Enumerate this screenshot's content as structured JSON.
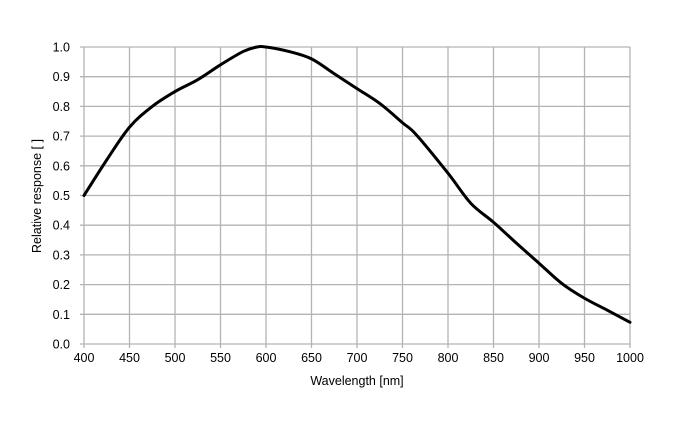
{
  "chart_data": {
    "type": "line",
    "title": "",
    "xlabel": "Wavelength [nm]",
    "ylabel": "Relative response [ ]",
    "xlim": [
      400,
      1000
    ],
    "ylim": [
      0,
      1.0
    ],
    "grid": true,
    "x_ticks": [
      "400",
      "450",
      "500",
      "550",
      "600",
      "650",
      "700",
      "750",
      "800",
      "850",
      "900",
      "950",
      "1000"
    ],
    "y_ticks": [
      "0.0",
      "0.1",
      "0.2",
      "0.3",
      "0.4",
      "0.5",
      "0.6",
      "0.7",
      "0.8",
      "0.9",
      "1.0"
    ],
    "line_color": "#000000",
    "grid_color": "#b3b3b3",
    "series": [
      {
        "x": [
          400,
          425,
          450,
          475,
          500,
          525,
          550,
          575,
          590,
          600,
          625,
          650,
          675,
          700,
          725,
          750,
          765,
          800,
          825,
          850,
          875,
          900,
          925,
          950,
          975,
          1000
        ],
        "y": [
          0.5,
          0.62,
          0.73,
          0.8,
          0.85,
          0.89,
          0.94,
          0.985,
          1.0,
          1.0,
          0.985,
          0.96,
          0.91,
          0.86,
          0.81,
          0.745,
          0.705,
          0.575,
          0.474,
          0.41,
          0.34,
          0.272,
          0.204,
          0.154,
          0.114,
          0.073
        ]
      }
    ]
  }
}
